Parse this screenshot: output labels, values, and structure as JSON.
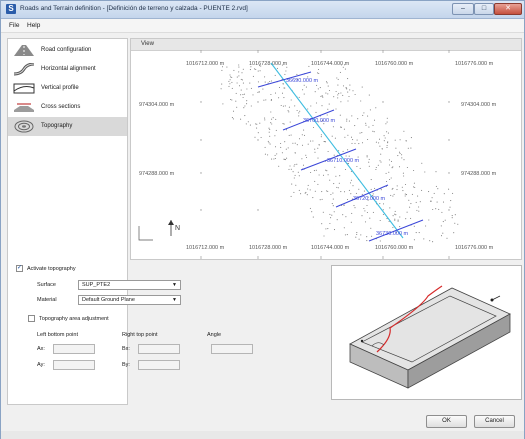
{
  "window": {
    "app_icon": "S",
    "title": "Roads and Terrain definition - [Definición de terreno y calzada - PUENTE 2.rvd]",
    "controls": [
      "–",
      "□",
      "✕"
    ]
  },
  "menu": [
    {
      "label": "File"
    },
    {
      "label": "Help"
    }
  ],
  "sidebar": {
    "items": [
      {
        "label": "Road configuration",
        "icon": "road-config-icon"
      },
      {
        "label": "Horizontal alignment",
        "icon": "horizontal-alignment-icon"
      },
      {
        "label": "Vertical profile",
        "icon": "vertical-profile-icon"
      },
      {
        "label": "Cross sections",
        "icon": "cross-sections-icon"
      },
      {
        "label": "Topography",
        "icon": "topography-icon",
        "active": true
      }
    ]
  },
  "view": {
    "label": "View",
    "top_ticks": [
      "1016712.000 m",
      "1016728.000 m",
      "1016744.000 m",
      "1016760.000 m",
      "1016776.000 m"
    ],
    "bottom_ticks": [
      "1016712.000 m",
      "1016728.000 m",
      "1016744.000 m",
      "1016760.000 m",
      "1016776.000 m"
    ],
    "left_ticks": [
      "974304.000 m",
      "974288.000 m"
    ],
    "right_ticks": [
      "974304.000 m",
      "974288.000 m"
    ],
    "stations": [
      "36690.000 m",
      "36700.000 m",
      "36710.000 m",
      "36720.000 m",
      "36730.000 m"
    ],
    "north_label": "N"
  },
  "topography": {
    "activate_label": "Activate topography",
    "activate_checked": true,
    "surface_label": "Surface",
    "surface_value": "SUP_PTE2",
    "material_label": "Material",
    "material_value": "Default Ground Plane",
    "adjust_label": "Topography area adjustment",
    "adjust_checked": false,
    "left_bottom_label": "Left bottom point",
    "right_top_label": "Right top point",
    "angle_label": "Angle",
    "ax_label": "Ax:",
    "ay_label": "Ay:",
    "bx_label": "Bx:",
    "by_label": "By:"
  },
  "buttons": {
    "ok": "OK",
    "cancel": "Cancel"
  },
  "colors": {
    "alignment_line": "#3fbde0",
    "cross_section": "#3a46d8",
    "diagram_curve": "#d62a2a"
  }
}
